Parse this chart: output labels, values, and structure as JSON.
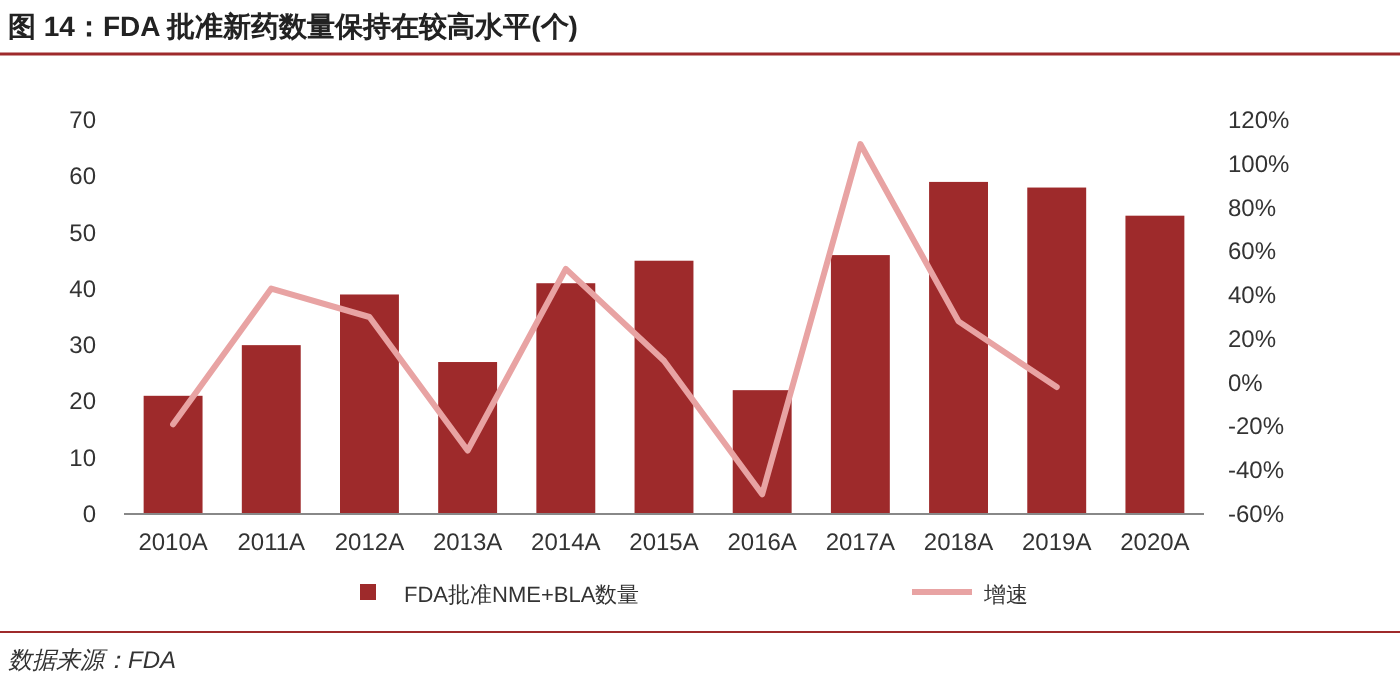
{
  "chart_data": {
    "type": "bar",
    "title": "图 14：FDA 批准新药数量保持在较高水平(个)",
    "categories": [
      "2010A",
      "2011A",
      "2012A",
      "2013A",
      "2014A",
      "2015A",
      "2016A",
      "2017A",
      "2018A",
      "2019A",
      "2020A"
    ],
    "series": [
      {
        "name": "FDA批准NME+BLA数量",
        "color": "#9e2a2b",
        "values": [
          21,
          30,
          39,
          27,
          41,
          45,
          22,
          46,
          59,
          58,
          53
        ]
      },
      {
        "name": "增速",
        "type": "line",
        "axis": "y2",
        "color": "#e8a3a3",
        "values": [
          -19,
          43,
          30,
          -31,
          52,
          10,
          -51,
          109,
          28,
          -2,
          null
        ]
      }
    ],
    "ylim": [
      0,
      70
    ],
    "yticks": [
      0,
      10,
      20,
      30,
      40,
      50,
      60,
      70
    ],
    "y2lim": [
      -60,
      120
    ],
    "y2ticks": [
      {
        "value": -60,
        "label": "-60%"
      },
      {
        "value": -40,
        "label": "-40%"
      },
      {
        "value": -20,
        "label": "-20%"
      },
      {
        "value": 0,
        "label": "0%"
      },
      {
        "value": 20,
        "label": "20%"
      },
      {
        "value": 40,
        "label": "40%"
      },
      {
        "value": 60,
        "label": "60%"
      },
      {
        "value": 80,
        "label": "80%"
      },
      {
        "value": 100,
        "label": "100%"
      },
      {
        "value": 120,
        "label": "120%"
      }
    ],
    "grid": false,
    "legend": "bottom",
    "annotations": [
      "数据来源：FDA"
    ]
  }
}
